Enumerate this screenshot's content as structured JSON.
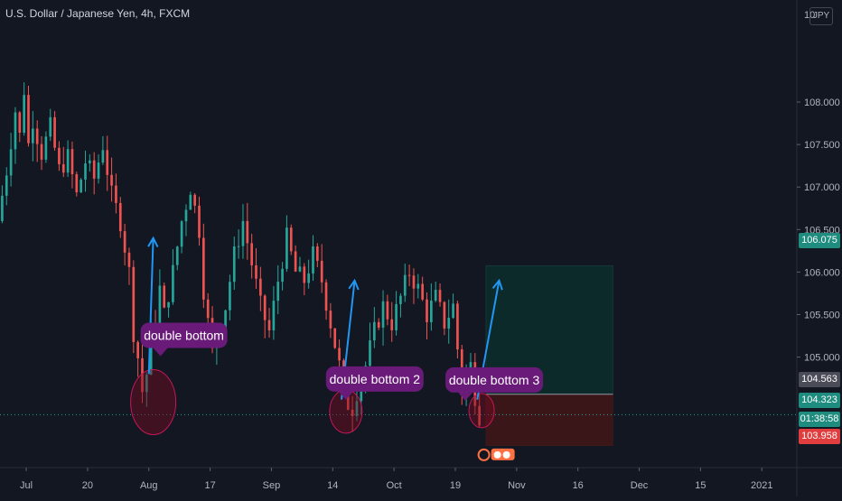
{
  "title": "U.S. Dollar / Japanese Yen, 4h, FXCM",
  "currency": "JPY",
  "colors": {
    "background": "#131722",
    "up": "#26a69a",
    "down": "#ef5350",
    "arrow": "#2196f3",
    "label": "#6a1b7a",
    "profit": "#0c2a29",
    "loss": "#3a1618"
  },
  "price_tags": {
    "target": "106.075",
    "entry": "104.563",
    "current": "104.323",
    "countdown": "01:38:58",
    "stop": "103.958"
  },
  "chart_data": {
    "type": "candlestick",
    "title": "U.S. Dollar / Japanese Yen, 4h, FXCM",
    "xlabel": "",
    "ylabel": "",
    "y_axis_ticks": [
      108.0,
      107.5,
      107.0,
      106.5,
      106.0,
      105.5,
      105.0
    ],
    "y_tick_labels": [
      "108.000",
      "107.500",
      "107.000",
      "106.500",
      "106.000",
      "105.500",
      "105.000"
    ],
    "ylim": [
      103.7,
      109.2
    ],
    "x_axis_ticks": [
      "Jul",
      "20",
      "Aug",
      "17",
      "Sep",
      "14",
      "Oct",
      "19",
      "Nov",
      "16",
      "Dec",
      "15",
      "2021"
    ],
    "current_price": 104.323,
    "path_points": [
      [
        0,
        106.6
      ],
      [
        2,
        107.2
      ],
      [
        4,
        107.9
      ],
      [
        5,
        107.6
      ],
      [
        6,
        108.15
      ],
      [
        7,
        107.5
      ],
      [
        8,
        107.8
      ],
      [
        10,
        107.4
      ],
      [
        12,
        107.7
      ],
      [
        14,
        107.2
      ],
      [
        16,
        107.35
      ],
      [
        18,
        106.9
      ],
      [
        20,
        107.3
      ],
      [
        22,
        107.1
      ],
      [
        24,
        107.5
      ],
      [
        26,
        106.9
      ],
      [
        28,
        106.6
      ],
      [
        30,
        106.0
      ],
      [
        31,
        105.3
      ],
      [
        32,
        105.0
      ],
      [
        33,
        104.6
      ],
      [
        34,
        104.8
      ],
      [
        35,
        105.3
      ],
      [
        36,
        105.4
      ],
      [
        37,
        105.8
      ],
      [
        38,
        105.5
      ],
      [
        40,
        106.0
      ],
      [
        42,
        106.6
      ],
      [
        44,
        107.0
      ],
      [
        46,
        106.5
      ],
      [
        47,
        105.8
      ],
      [
        48,
        105.4
      ],
      [
        49,
        105.05
      ],
      [
        50,
        105.2
      ],
      [
        52,
        105.6
      ],
      [
        54,
        106.2
      ],
      [
        56,
        106.6
      ],
      [
        58,
        106.1
      ],
      [
        60,
        105.6
      ],
      [
        62,
        105.3
      ],
      [
        64,
        105.9
      ],
      [
        66,
        106.4
      ],
      [
        68,
        106.0
      ],
      [
        70,
        105.9
      ],
      [
        72,
        106.2
      ],
      [
        74,
        105.9
      ],
      [
        76,
        105.4
      ],
      [
        78,
        104.9
      ],
      [
        79,
        104.6
      ],
      [
        80,
        104.45
      ],
      [
        81,
        104.4
      ],
      [
        82,
        104.6
      ],
      [
        84,
        104.9
      ],
      [
        86,
        105.3
      ],
      [
        88,
        105.6
      ],
      [
        90,
        105.4
      ],
      [
        92,
        105.7
      ],
      [
        94,
        106.0
      ],
      [
        96,
        105.8
      ],
      [
        98,
        105.5
      ],
      [
        100,
        105.7
      ],
      [
        102,
        105.4
      ],
      [
        104,
        105.6
      ],
      [
        105,
        105.1
      ],
      [
        106,
        104.6
      ],
      [
        107,
        104.85
      ],
      [
        108,
        104.9
      ],
      [
        109,
        104.55
      ],
      [
        110,
        104.32
      ]
    ],
    "candle_count": 110,
    "x_span": [
      0,
      182
    ],
    "annotations": [
      {
        "label": "double bottom",
        "x": 35,
        "y": 104.47
      },
      {
        "label": "double bottom 2",
        "x": 79,
        "y": 104.36
      },
      {
        "label": "double bottom 3",
        "x": 110,
        "y": 104.37
      }
    ],
    "arrows": [
      {
        "from": [
          34,
          104.8
        ],
        "to": [
          35,
          106.4
        ]
      },
      {
        "from": [
          78,
          104.5
        ],
        "to": [
          81,
          105.9
        ]
      },
      {
        "from": [
          109,
          104.5
        ],
        "to": [
          114,
          105.9
        ]
      }
    ],
    "position": {
      "entry": 104.563,
      "target": 106.075,
      "stop": 103.958,
      "x_start": 111,
      "x_end": 140
    },
    "event_badge": {
      "x": 113,
      "value": 103.85
    }
  }
}
